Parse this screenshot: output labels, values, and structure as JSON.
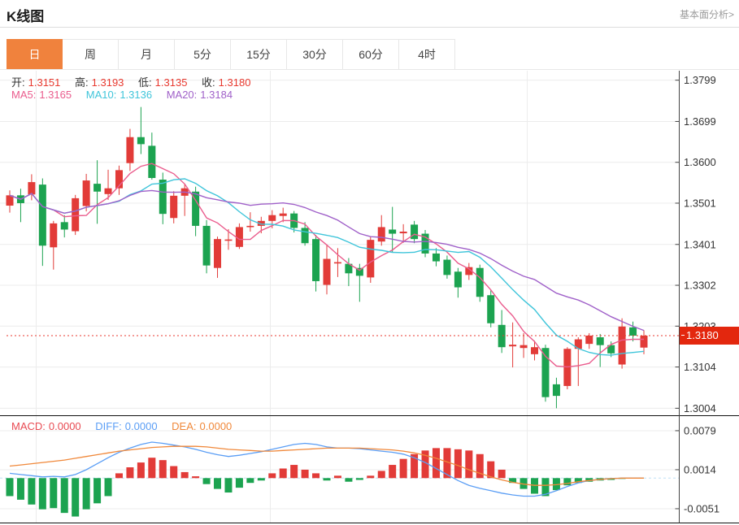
{
  "header": {
    "title": "K线图",
    "link": "基本面分析>"
  },
  "tabs": {
    "items": [
      {
        "label": "日",
        "active": true
      },
      {
        "label": "周"
      },
      {
        "label": "月"
      },
      {
        "label": "5分"
      },
      {
        "label": "15分"
      },
      {
        "label": "30分"
      },
      {
        "label": "60分"
      },
      {
        "label": "4时"
      }
    ]
  },
  "ohlc": {
    "open_label": "开:",
    "open": "1.3151",
    "high_label": "高:",
    "high": "1.3193",
    "low_label": "低:",
    "low": "1.3135",
    "close_label": "收:",
    "close": "1.3180"
  },
  "ma": {
    "ma5_label": "MA5:",
    "ma5": "1.3165",
    "ma10_label": "MA10:",
    "ma10": "1.3136",
    "ma20_label": "MA20:",
    "ma20": "1.3184"
  },
  "macd_row": {
    "macd_label": "MACD:",
    "macd": "0.0000",
    "diff_label": "DIFF:",
    "diff": "0.0000",
    "dea_label": "DEA:",
    "dea": "0.0000"
  },
  "price_tag": {
    "value": "1.3180"
  },
  "colors": {
    "up": "#e23b38",
    "down": "#1ca350",
    "ma5": "#ea5c8d",
    "ma10": "#3fc5da",
    "ma20": "#a061c9",
    "diff": "#5b9ef5",
    "dea": "#f0883a",
    "grid": "#ececec",
    "axis": "#444",
    "tick_text": "#333",
    "dotted": "#e8392f",
    "zero_dash": "#bfe0f5",
    "tag_bg": "#e3270e",
    "tab_active": "#f0823d"
  },
  "chart_data": {
    "type": "candlestick",
    "title": "K线图 (日)",
    "panels": [
      "kline",
      "macd"
    ],
    "y_ticks_kline": [
      1.3799,
      1.3699,
      1.36,
      1.3501,
      1.3401,
      1.3302,
      1.3203,
      1.3104,
      1.3004
    ],
    "y_ticks_macd": [
      0.0079,
      0.0014,
      -0.0051
    ],
    "kline_range": [
      1.2985,
      1.382
    ],
    "macd_range": [
      -0.0075,
      0.0096
    ],
    "current_price": 1.318,
    "last_candle": {
      "open": 1.3151,
      "high": 1.3193,
      "low": 1.3135,
      "close": 1.318
    },
    "ma_periods": [
      5,
      10,
      20
    ],
    "candles": [
      [
        1.3495,
        1.3532,
        1.3478,
        1.352
      ],
      [
        1.352,
        1.3536,
        1.3455,
        1.3501
      ],
      [
        1.3522,
        1.3571,
        1.3508,
        1.3552
      ],
      [
        1.3546,
        1.3561,
        1.3349,
        1.3398
      ],
      [
        1.3394,
        1.3458,
        1.334,
        1.3452
      ],
      [
        1.3455,
        1.3472,
        1.3418,
        1.3437
      ],
      [
        1.3433,
        1.3521,
        1.3424,
        1.3513
      ],
      [
        1.3494,
        1.3572,
        1.3481,
        1.3556
      ],
      [
        1.3548,
        1.3605,
        1.3451,
        1.3529
      ],
      [
        1.3523,
        1.3582,
        1.3509,
        1.3537
      ],
      [
        1.3537,
        1.3592,
        1.3521,
        1.3581
      ],
      [
        1.3598,
        1.3681,
        1.3579,
        1.3661
      ],
      [
        1.3661,
        1.3734,
        1.362,
        1.3644
      ],
      [
        1.364,
        1.3672,
        1.3558,
        1.3562
      ],
      [
        1.3558,
        1.3575,
        1.345,
        1.3475
      ],
      [
        1.3465,
        1.353,
        1.3452,
        1.3519
      ],
      [
        1.3519,
        1.3548,
        1.347,
        1.3537
      ],
      [
        1.3529,
        1.3541,
        1.3421,
        1.3446
      ],
      [
        1.3446,
        1.346,
        1.3331,
        1.335
      ],
      [
        1.3344,
        1.342,
        1.332,
        1.3414
      ],
      [
        1.3412,
        1.3438,
        1.3388,
        1.3413
      ],
      [
        1.3395,
        1.3452,
        1.339,
        1.3443
      ],
      [
        1.3443,
        1.3479,
        1.3432,
        1.3446
      ],
      [
        1.3446,
        1.3468,
        1.3428,
        1.3458
      ],
      [
        1.3458,
        1.3484,
        1.344,
        1.3472
      ],
      [
        1.347,
        1.349,
        1.3455,
        1.3476
      ],
      [
        1.3476,
        1.3482,
        1.343,
        1.3441
      ],
      [
        1.3441,
        1.3455,
        1.3398,
        1.3404
      ],
      [
        1.3414,
        1.3424,
        1.3287,
        1.3312
      ],
      [
        1.3303,
        1.3401,
        1.328,
        1.3366
      ],
      [
        1.3356,
        1.3392,
        1.3322,
        1.3358
      ],
      [
        1.3354,
        1.3368,
        1.33,
        1.3331
      ],
      [
        1.3344,
        1.3354,
        1.3262,
        1.3325
      ],
      [
        1.3321,
        1.342,
        1.3308,
        1.3412
      ],
      [
        1.3408,
        1.3472,
        1.3398,
        1.3443
      ],
      [
        1.3437,
        1.3492,
        1.3381,
        1.3427
      ],
      [
        1.3428,
        1.345,
        1.3405,
        1.3432
      ],
      [
        1.3449,
        1.3458,
        1.3404,
        1.3414
      ],
      [
        1.3427,
        1.3436,
        1.337,
        1.3379
      ],
      [
        1.3379,
        1.3392,
        1.3348,
        1.336
      ],
      [
        1.3364,
        1.3374,
        1.3318,
        1.3327
      ],
      [
        1.3335,
        1.3344,
        1.3272,
        1.3297
      ],
      [
        1.3327,
        1.3356,
        1.3315,
        1.3346
      ],
      [
        1.3344,
        1.3352,
        1.3262,
        1.3274
      ],
      [
        1.3278,
        1.329,
        1.32,
        1.321
      ],
      [
        1.3206,
        1.3242,
        1.3138,
        1.3152
      ],
      [
        1.3154,
        1.3212,
        1.3103,
        1.3158
      ],
      [
        1.315,
        1.3186,
        1.3126,
        1.3157
      ],
      [
        1.3135,
        1.3168,
        1.312,
        1.3152
      ],
      [
        1.315,
        1.3158,
        1.302,
        1.3031
      ],
      [
        1.3062,
        1.3078,
        1.3004,
        1.3034
      ],
      [
        1.3058,
        1.3152,
        1.305,
        1.3148
      ],
      [
        1.3148,
        1.3176,
        1.3058,
        1.3171
      ],
      [
        1.316,
        1.3186,
        1.3148,
        1.318
      ],
      [
        1.3176,
        1.3184,
        1.3104,
        1.3157
      ],
      [
        1.3157,
        1.3166,
        1.3128,
        1.3137
      ],
      [
        1.311,
        1.3222,
        1.31,
        1.3202
      ],
      [
        1.32,
        1.3214,
        1.3166,
        1.318
      ],
      [
        1.3151,
        1.3193,
        1.3135,
        1.318
      ]
    ],
    "macd": {
      "hist": [
        -0.003,
        -0.0036,
        -0.0044,
        -0.0052,
        -0.005,
        -0.0058,
        -0.0064,
        -0.0052,
        -0.0042,
        -0.003,
        0.0008,
        0.0018,
        0.0026,
        0.0034,
        0.003,
        0.002,
        0.001,
        0.0003,
        -0.001,
        -0.0018,
        -0.0024,
        -0.0016,
        -0.0008,
        -0.0004,
        0.0008,
        0.0016,
        0.0022,
        0.0014,
        0.0008,
        -0.0004,
        0.0004,
        -0.0006,
        -0.0003,
        0.0004,
        0.0012,
        0.0022,
        0.0032,
        0.004,
        0.0046,
        0.005,
        0.005,
        0.0048,
        0.0046,
        0.004,
        0.0028,
        0.0014,
        -0.0008,
        -0.0018,
        -0.0026,
        -0.003,
        -0.002,
        -0.0012,
        -0.0008,
        -0.0006,
        -0.0004,
        -0.0003,
        -0.0001,
        0,
        0
      ],
      "diff": [
        0.0008,
        0.0006,
        0.0004,
        0.0002,
        0.0003,
        0.0002,
        0.0006,
        0.0014,
        0.0024,
        0.0034,
        0.0043,
        0.005,
        0.0056,
        0.006,
        0.0058,
        0.0055,
        0.0052,
        0.0048,
        0.0043,
        0.0039,
        0.0036,
        0.0038,
        0.0041,
        0.0044,
        0.0048,
        0.0052,
        0.0056,
        0.0058,
        0.0056,
        0.0052,
        0.005,
        0.005,
        0.0049,
        0.0047,
        0.0045,
        0.0043,
        0.004,
        0.0034,
        0.0026,
        0.0016,
        0.0006,
        -0.0004,
        -0.0012,
        -0.0017,
        -0.0021,
        -0.0025,
        -0.0028,
        -0.003,
        -0.003,
        -0.0027,
        -0.0021,
        -0.0014,
        -0.0008,
        -0.0004,
        -0.0002,
        -0.0001,
        0,
        0,
        0
      ],
      "dea": [
        0.002,
        0.0022,
        0.0024,
        0.0026,
        0.0028,
        0.003,
        0.0033,
        0.0036,
        0.0039,
        0.0042,
        0.0045,
        0.0047,
        0.0049,
        0.0051,
        0.0052,
        0.0053,
        0.0053,
        0.0053,
        0.0052,
        0.005,
        0.0048,
        0.0047,
        0.0046,
        0.0045,
        0.0045,
        0.0046,
        0.0047,
        0.0048,
        0.0049,
        0.005,
        0.005,
        0.005,
        0.005,
        0.0049,
        0.0048,
        0.0047,
        0.0045,
        0.0042,
        0.0038,
        0.0033,
        0.0027,
        0.0021,
        0.0014,
        0.0008,
        0.0002,
        -0.0003,
        -0.0007,
        -0.001,
        -0.0012,
        -0.0012,
        -0.0011,
        -0.0009,
        -0.0006,
        -0.0004,
        -0.0002,
        -0.0001,
        0,
        0,
        0
      ]
    }
  }
}
